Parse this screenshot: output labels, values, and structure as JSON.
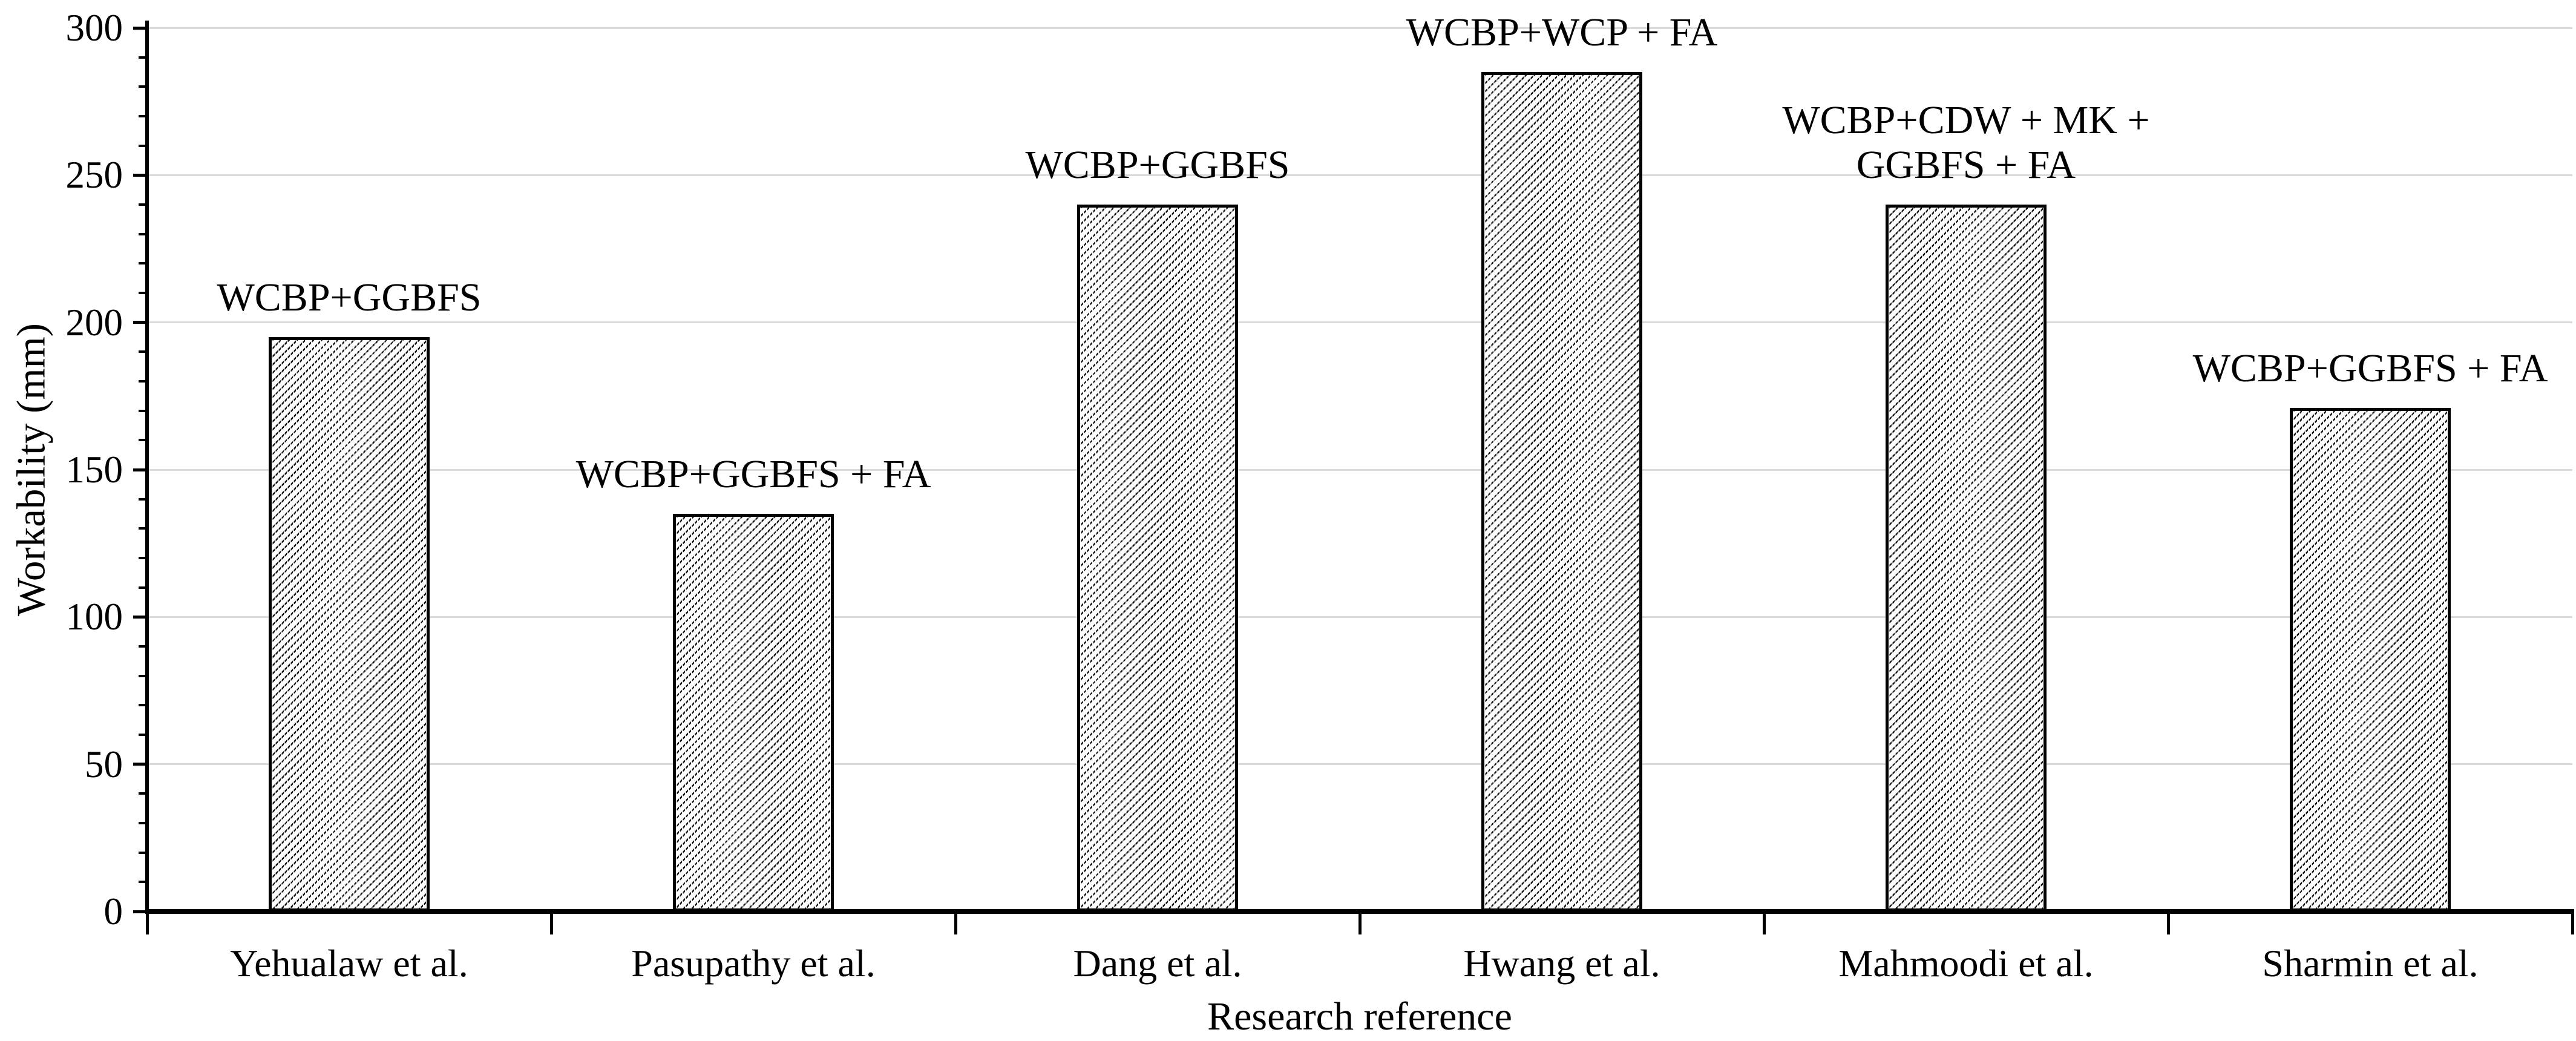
{
  "chart_data": {
    "type": "bar",
    "title": "",
    "xlabel": "Research reference",
    "ylabel": "Workability (mm)",
    "ylim": [
      0,
      300
    ],
    "ytick_step": 50,
    "minor_ytick_step": 10,
    "yticks": [
      "0",
      "50",
      "100",
      "150",
      "200",
      "250",
      "300"
    ],
    "grid": "horizontal-major-gridlines",
    "legend_position": "none",
    "categories": [
      "Yehualaw et al.",
      "Pasupathy et al.",
      "Dang et al.",
      "Hwang et al.",
      "Mahmoodi et al.",
      "Sharmin et al."
    ],
    "values": [
      195,
      135,
      240,
      285,
      240,
      171
    ],
    "bar_labels": [
      "WCBP+GGBFS",
      "WCBP+GGBFS + FA",
      "WCBP+GGBFS",
      "WCBP+WCP + FA",
      "WCBP+CDW + MK +\nGGBFS + FA",
      "WCBP+GGBFS + FA"
    ],
    "colors": {
      "bar_fill": "#ffffff",
      "bar_hatch": "#161616",
      "bar_border": "#000000",
      "gridline": "#dadada",
      "axis": "#000000",
      "text": "#000000"
    },
    "bar_pattern": "dashed-upward-diagonal-hatch"
  }
}
